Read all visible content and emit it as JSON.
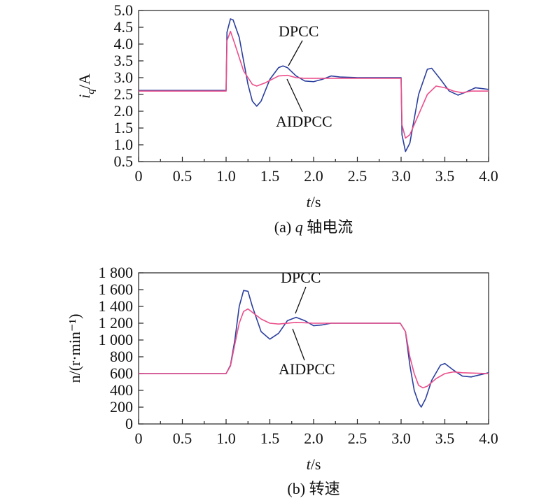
{
  "colors": {
    "dpcc": "#2b3f9e",
    "aidpcc": "#ec4f8a"
  },
  "chart_data": [
    {
      "type": "line",
      "caption": "(a) q 轴电流",
      "caption_prefix": "(a) ",
      "caption_var": "q",
      "caption_rest": " 轴电流",
      "xlabel": "t",
      "xlabel_unit": "/s",
      "ylabel_var": "i",
      "ylabel_sub": "q",
      "ylabel_unit": "/A",
      "xlim": [
        0,
        4.0
      ],
      "ylim": [
        0.5,
        5.0
      ],
      "xticks": [
        "0",
        "0.5",
        "1.0",
        "1.5",
        "2.0",
        "2.5",
        "3.0",
        "3.5",
        "4.0"
      ],
      "yticks": [
        "0.5",
        "1.0",
        "1.5",
        "2.0",
        "2.5",
        "3.0",
        "3.5",
        "4.0",
        "4.5",
        "5.0"
      ],
      "annotations": [
        "DPCC",
        "AIDPCC"
      ],
      "series": [
        {
          "name": "DPCC",
          "points": [
            [
              0,
              2.62
            ],
            [
              0.5,
              2.62
            ],
            [
              0.99,
              2.62
            ],
            [
              1.0,
              2.62
            ],
            [
              1.01,
              4.35
            ],
            [
              1.05,
              4.75
            ],
            [
              1.08,
              4.72
            ],
            [
              1.15,
              4.2
            ],
            [
              1.2,
              3.5
            ],
            [
              1.25,
              2.8
            ],
            [
              1.3,
              2.3
            ],
            [
              1.35,
              2.15
            ],
            [
              1.4,
              2.3
            ],
            [
              1.5,
              2.95
            ],
            [
              1.6,
              3.3
            ],
            [
              1.65,
              3.35
            ],
            [
              1.7,
              3.3
            ],
            [
              1.8,
              3.05
            ],
            [
              1.9,
              2.9
            ],
            [
              2.0,
              2.88
            ],
            [
              2.1,
              2.95
            ],
            [
              2.2,
              3.05
            ],
            [
              2.3,
              3.02
            ],
            [
              2.5,
              3.0
            ],
            [
              2.99,
              3.0
            ],
            [
              3.0,
              3.0
            ],
            [
              3.01,
              1.3
            ],
            [
              3.05,
              0.8
            ],
            [
              3.1,
              1.05
            ],
            [
              3.2,
              2.5
            ],
            [
              3.3,
              3.25
            ],
            [
              3.35,
              3.28
            ],
            [
              3.45,
              2.95
            ],
            [
              3.55,
              2.6
            ],
            [
              3.65,
              2.48
            ],
            [
              3.75,
              2.58
            ],
            [
              3.85,
              2.7
            ],
            [
              4.0,
              2.65
            ]
          ]
        },
        {
          "name": "AIDPCC",
          "points": [
            [
              0,
              2.6
            ],
            [
              0.5,
              2.6
            ],
            [
              0.99,
              2.6
            ],
            [
              1.0,
              2.6
            ],
            [
              1.01,
              4.1
            ],
            [
              1.05,
              4.38
            ],
            [
              1.1,
              4.0
            ],
            [
              1.2,
              3.2
            ],
            [
              1.3,
              2.8
            ],
            [
              1.35,
              2.75
            ],
            [
              1.45,
              2.85
            ],
            [
              1.6,
              3.05
            ],
            [
              1.7,
              3.07
            ],
            [
              1.8,
              3.0
            ],
            [
              1.9,
              2.98
            ],
            [
              2.0,
              2.98
            ],
            [
              2.5,
              2.98
            ],
            [
              2.99,
              2.98
            ],
            [
              3.0,
              2.98
            ],
            [
              3.01,
              1.6
            ],
            [
              3.05,
              1.2
            ],
            [
              3.1,
              1.3
            ],
            [
              3.2,
              1.9
            ],
            [
              3.3,
              2.5
            ],
            [
              3.4,
              2.75
            ],
            [
              3.5,
              2.7
            ],
            [
              3.6,
              2.6
            ],
            [
              3.7,
              2.55
            ],
            [
              3.8,
              2.6
            ],
            [
              4.0,
              2.6
            ]
          ]
        }
      ]
    },
    {
      "type": "line",
      "caption": "(b) 转速",
      "xlabel": "t",
      "xlabel_unit": "/s",
      "ylabel": "n/(r·min⁻¹)",
      "xlim": [
        0,
        4.0
      ],
      "ylim": [
        0,
        1800
      ],
      "xticks": [
        "0",
        "0.5",
        "1.0",
        "1.5",
        "2.0",
        "2.5",
        "3.0",
        "3.5",
        "4.0"
      ],
      "yticks": [
        "0",
        "200",
        "400",
        "600",
        "800",
        "1 000",
        "1 200",
        "1 400",
        "1 600",
        "1 800"
      ],
      "annotations": [
        "DPCC",
        "AIDPCC"
      ],
      "series": [
        {
          "name": "DPCC",
          "points": [
            [
              0,
              600
            ],
            [
              0.5,
              600
            ],
            [
              1.0,
              600
            ],
            [
              1.05,
              700
            ],
            [
              1.1,
              1000
            ],
            [
              1.15,
              1400
            ],
            [
              1.2,
              1590
            ],
            [
              1.25,
              1580
            ],
            [
              1.3,
              1400
            ],
            [
              1.4,
              1100
            ],
            [
              1.5,
              1010
            ],
            [
              1.6,
              1080
            ],
            [
              1.7,
              1230
            ],
            [
              1.8,
              1270
            ],
            [
              1.9,
              1230
            ],
            [
              2.0,
              1170
            ],
            [
              2.1,
              1180
            ],
            [
              2.2,
              1200
            ],
            [
              2.5,
              1200
            ],
            [
              2.99,
              1200
            ],
            [
              3.05,
              1100
            ],
            [
              3.1,
              700
            ],
            [
              3.15,
              400
            ],
            [
              3.2,
              250
            ],
            [
              3.23,
              200
            ],
            [
              3.28,
              300
            ],
            [
              3.35,
              520
            ],
            [
              3.45,
              700
            ],
            [
              3.5,
              720
            ],
            [
              3.6,
              640
            ],
            [
              3.7,
              570
            ],
            [
              3.8,
              560
            ],
            [
              4.0,
              610
            ]
          ]
        },
        {
          "name": "AIDPCC",
          "points": [
            [
              0,
              600
            ],
            [
              0.5,
              600
            ],
            [
              1.0,
              600
            ],
            [
              1.05,
              690
            ],
            [
              1.1,
              950
            ],
            [
              1.15,
              1200
            ],
            [
              1.2,
              1340
            ],
            [
              1.25,
              1370
            ],
            [
              1.3,
              1330
            ],
            [
              1.4,
              1250
            ],
            [
              1.5,
              1200
            ],
            [
              1.6,
              1190
            ],
            [
              1.8,
              1210
            ],
            [
              2.0,
              1200
            ],
            [
              2.5,
              1200
            ],
            [
              2.99,
              1200
            ],
            [
              3.05,
              1100
            ],
            [
              3.1,
              800
            ],
            [
              3.15,
              600
            ],
            [
              3.2,
              460
            ],
            [
              3.25,
              430
            ],
            [
              3.3,
              450
            ],
            [
              3.4,
              540
            ],
            [
              3.5,
              600
            ],
            [
              3.6,
              620
            ],
            [
              3.7,
              610
            ],
            [
              4.0,
              600
            ]
          ]
        }
      ]
    }
  ]
}
